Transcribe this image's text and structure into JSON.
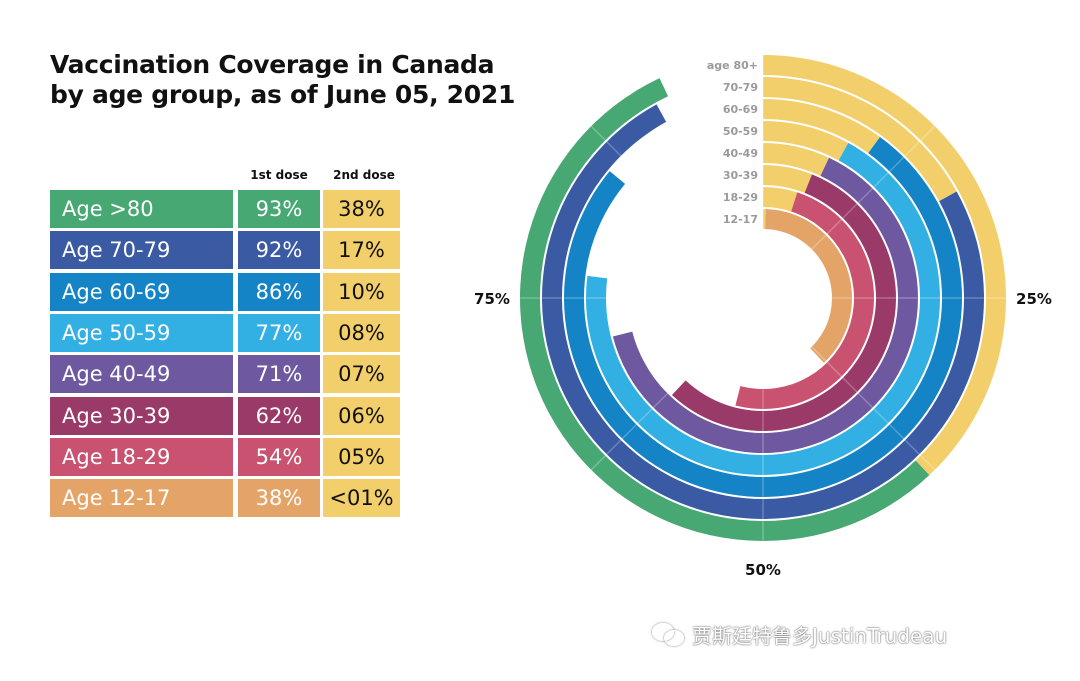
{
  "title": {
    "line1": "Vaccination Coverage in Canada",
    "line2": "by age group, as of June 05, 2021"
  },
  "table": {
    "col_dose1": "1st dose",
    "col_dose2": "2nd dose",
    "rows": [
      {
        "label": "Age >80",
        "dose1": "93%",
        "dose2": "38%",
        "color": "#48a874"
      },
      {
        "label": "Age 70-79",
        "dose1": "92%",
        "dose2": "17%",
        "color": "#3a5aa3"
      },
      {
        "label": "Age 60-69",
        "dose1": "86%",
        "dose2": "10%",
        "color": "#1484c6"
      },
      {
        "label": "Age 50-59",
        "dose1": "77%",
        "dose2": "08%",
        "color": "#33b0e3"
      },
      {
        "label": "Age 40-49",
        "dose1": "71%",
        "dose2": "07%",
        "color": "#6e589f"
      },
      {
        "label": "Age 30-39",
        "dose1": "62%",
        "dose2": "06%",
        "color": "#9a3a69"
      },
      {
        "label": "Age 18-29",
        "dose1": "54%",
        "dose2": "05%",
        "color": "#c8526f"
      },
      {
        "label": "Age 12-17",
        "dose1": "38%",
        "dose2": "<01%",
        "color": "#e4a468"
      }
    ]
  },
  "dose2_color": "#f3cf6b",
  "chart_data": {
    "type": "radial-bar",
    "title": "Vaccination Coverage in Canada by age group, as of June 05, 2021",
    "categories": [
      "age 80+",
      "70-79",
      "60-69",
      "50-59",
      "40-49",
      "30-39",
      "18-29",
      "12-17"
    ],
    "series": [
      {
        "name": "1st dose",
        "values": [
          93,
          92,
          86,
          77,
          71,
          62,
          54,
          38
        ]
      },
      {
        "name": "2nd dose",
        "values": [
          38,
          17,
          10,
          8,
          7,
          6,
          5,
          0.5
        ]
      }
    ],
    "axis_range": [
      0,
      100
    ],
    "tick_labels": [
      "25%",
      "50%",
      "75%"
    ],
    "tick_values": [
      25,
      50,
      75
    ],
    "grid": true,
    "direction": "clockwise from top"
  },
  "watermark": {
    "icon": "wechat-icon",
    "text": "贾斯廷特鲁多JustinTrudeau"
  }
}
